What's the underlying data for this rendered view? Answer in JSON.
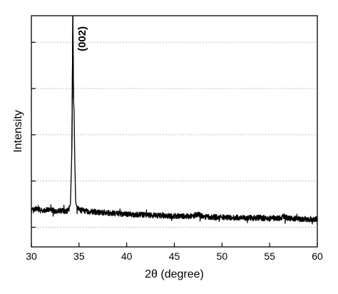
{
  "chart_data": {
    "type": "line",
    "title": "",
    "xlabel": "2θ (degree)",
    "ylabel": "Intensity",
    "xlim": [
      30,
      60
    ],
    "ylim": [
      0,
      100
    ],
    "xticks": [
      30,
      35,
      40,
      45,
      50,
      55,
      60
    ],
    "xtick_labels": [
      "30",
      "35",
      "40",
      "45",
      "50",
      "55",
      "60"
    ],
    "yticks": [
      8.5,
      28.5,
      48.5,
      68.5,
      88.5
    ],
    "ytick_labels": [],
    "grid": "horizontal dotted",
    "legend": "none",
    "line_color": "#000000",
    "grid_color": "#bdbdbd",
    "series": [
      {
        "x": [
          30.0,
          30.5,
          31.0,
          31.5,
          32.0,
          32.5,
          33.0,
          33.5,
          33.9,
          34.1,
          34.25,
          34.35,
          34.42,
          34.48,
          34.55,
          34.65,
          34.8,
          35.0,
          35.5,
          36.0,
          37.0,
          38.0,
          39.0,
          40.0,
          41.0,
          42.0,
          43.0,
          44.0,
          45.0,
          46.0,
          47.0,
          47.5,
          48.0,
          49.0,
          50.0,
          51.0,
          52.0,
          53.0,
          54.0,
          55.0,
          56.0,
          56.5,
          57.0,
          58.0,
          59.0,
          60.0
        ],
        "y": [
          15.5,
          16.5,
          15.6,
          16.0,
          16.3,
          15.4,
          15.8,
          15.3,
          15.9,
          18.5,
          42.0,
          100.0,
          64.0,
          59.0,
          38.0,
          19.5,
          16.8,
          16.0,
          15.6,
          15.3,
          15.0,
          14.7,
          14.4,
          14.1,
          14.0,
          13.8,
          13.6,
          13.4,
          13.3,
          13.2,
          13.3,
          14.3,
          13.0,
          12.9,
          12.8,
          12.7,
          12.6,
          12.5,
          12.6,
          12.3,
          12.4,
          13.2,
          12.2,
          12.1,
          12.0,
          12.0
        ]
      }
    ],
    "annotations": [
      {
        "text": "(002)",
        "x": 35.7,
        "y": 90.0
      }
    ]
  }
}
